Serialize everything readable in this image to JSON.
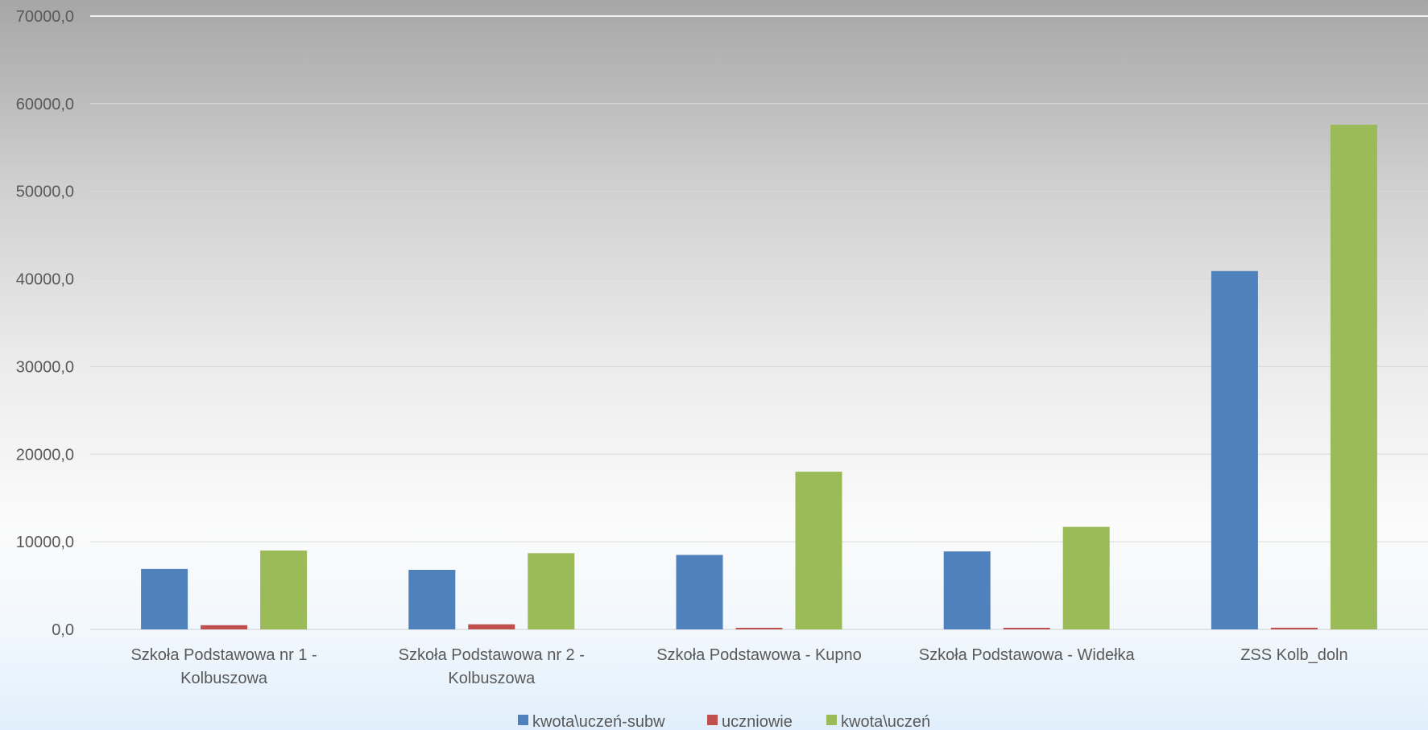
{
  "chart_data": {
    "type": "bar",
    "categories": [
      [
        "Szkoła Podstawowa nr 1 -",
        "Kolbuszowa"
      ],
      [
        "Szkoła Podstawowa nr 2 -",
        "Kolbuszowa"
      ],
      [
        "Szkoła Podstawowa - Kupno"
      ],
      [
        "Szkoła Podstawowa - Widełka"
      ],
      [
        "ZSS Kolb_doln"
      ]
    ],
    "series": [
      {
        "name": "kwota\\uczeń-subw",
        "color": "#4f81bd",
        "values": [
          6900,
          6800,
          8500,
          8900,
          40900
        ]
      },
      {
        "name": "uczniowie",
        "color": "#c0504d",
        "values": [
          480,
          580,
          160,
          170,
          190
        ]
      },
      {
        "name": "kwota\\uczeń",
        "color": "#9bbb59",
        "values": [
          9000,
          8700,
          18000,
          11700,
          57600
        ]
      }
    ],
    "yticks": [
      "0,0",
      "10000,0",
      "20000,0",
      "30000,0",
      "40000,0",
      "50000,0",
      "60000,0",
      "70000,0"
    ],
    "ylim": [
      0,
      70000
    ],
    "ystep": 10000,
    "grid": true,
    "legend": "bottom"
  }
}
